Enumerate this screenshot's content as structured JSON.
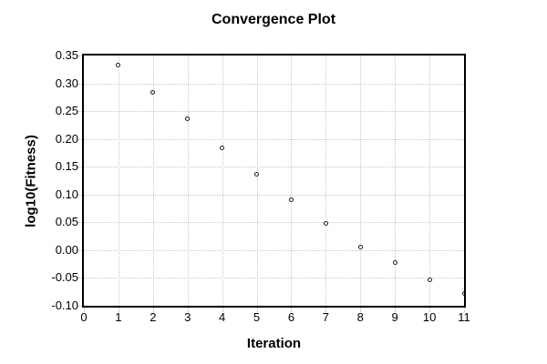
{
  "title": "Convergence Plot",
  "colors": {
    "background": "#ffffff",
    "text": "#000000",
    "axis_border": "#000000",
    "gridline": "#c8c8c8",
    "marker_edge": "#1a1a1a",
    "marker_fill": "#ffffff"
  },
  "chart_data": {
    "type": "scatter",
    "title": "Convergence Plot",
    "xlabel": "Iteration",
    "ylabel": "log10(Fitness)",
    "x": [
      1,
      2,
      3,
      4,
      5,
      6,
      7,
      8,
      9,
      10,
      11
    ],
    "y": [
      0.333,
      0.284,
      0.236,
      0.184,
      0.137,
      0.09,
      0.048,
      0.006,
      -0.023,
      -0.054,
      -0.078
    ],
    "xlim": [
      0,
      11
    ],
    "ylim": [
      -0.1,
      0.35
    ],
    "xtick_labels": [
      "0",
      "1",
      "2",
      "3",
      "4",
      "5",
      "6",
      "7",
      "8",
      "9",
      "10",
      "11"
    ],
    "ytick_labels": [
      "0.35",
      "0.30",
      "0.25",
      "0.20",
      "0.15",
      "0.10",
      "0.05",
      "0.00",
      "-0.05",
      "-0.10"
    ],
    "grid": true,
    "grid_style": "dotted",
    "legend": false,
    "marker": "open-circle"
  }
}
